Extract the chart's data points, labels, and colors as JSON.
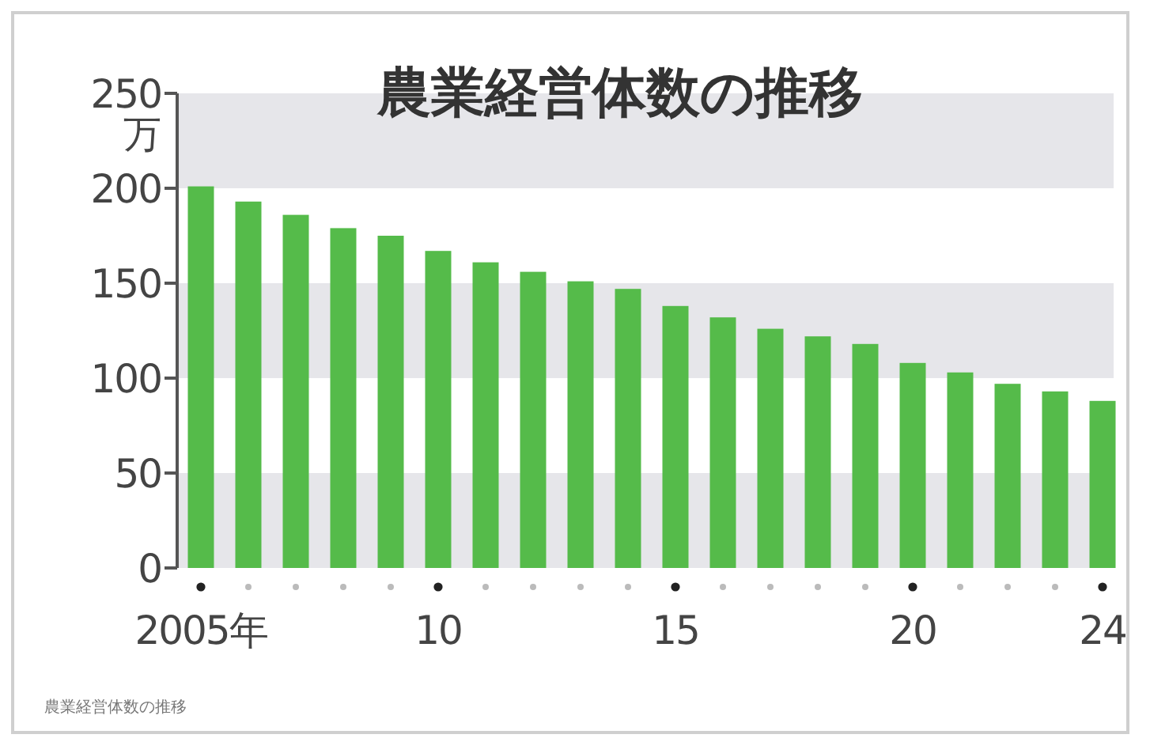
{
  "chart_data": {
    "type": "bar",
    "title": "農業経営体数の推移",
    "ylabel": "万",
    "categories": [
      "2005年",
      null,
      null,
      null,
      null,
      "10",
      null,
      null,
      null,
      null,
      "15",
      null,
      null,
      null,
      null,
      "20",
      null,
      null,
      null,
      "24"
    ],
    "values": [
      201,
      193,
      186,
      179,
      175,
      167,
      161,
      156,
      151,
      147,
      138,
      132,
      126,
      122,
      118,
      108,
      103,
      97,
      93,
      88
    ],
    "color": "#55bb4a",
    "ylim": [
      0,
      250
    ],
    "yticks": [
      0,
      50,
      100,
      150,
      200,
      250
    ],
    "bands": [
      {
        "axis": "y",
        "from": 0,
        "to": 50,
        "color": "#e6e6ea"
      },
      {
        "axis": "y",
        "from": 100,
        "to": 150,
        "color": "#e6e6ea"
      },
      {
        "axis": "y",
        "from": 200,
        "to": 250,
        "color": "#e6e6ea"
      }
    ],
    "annotations": [
      "農業経営体数の推移"
    ]
  }
}
